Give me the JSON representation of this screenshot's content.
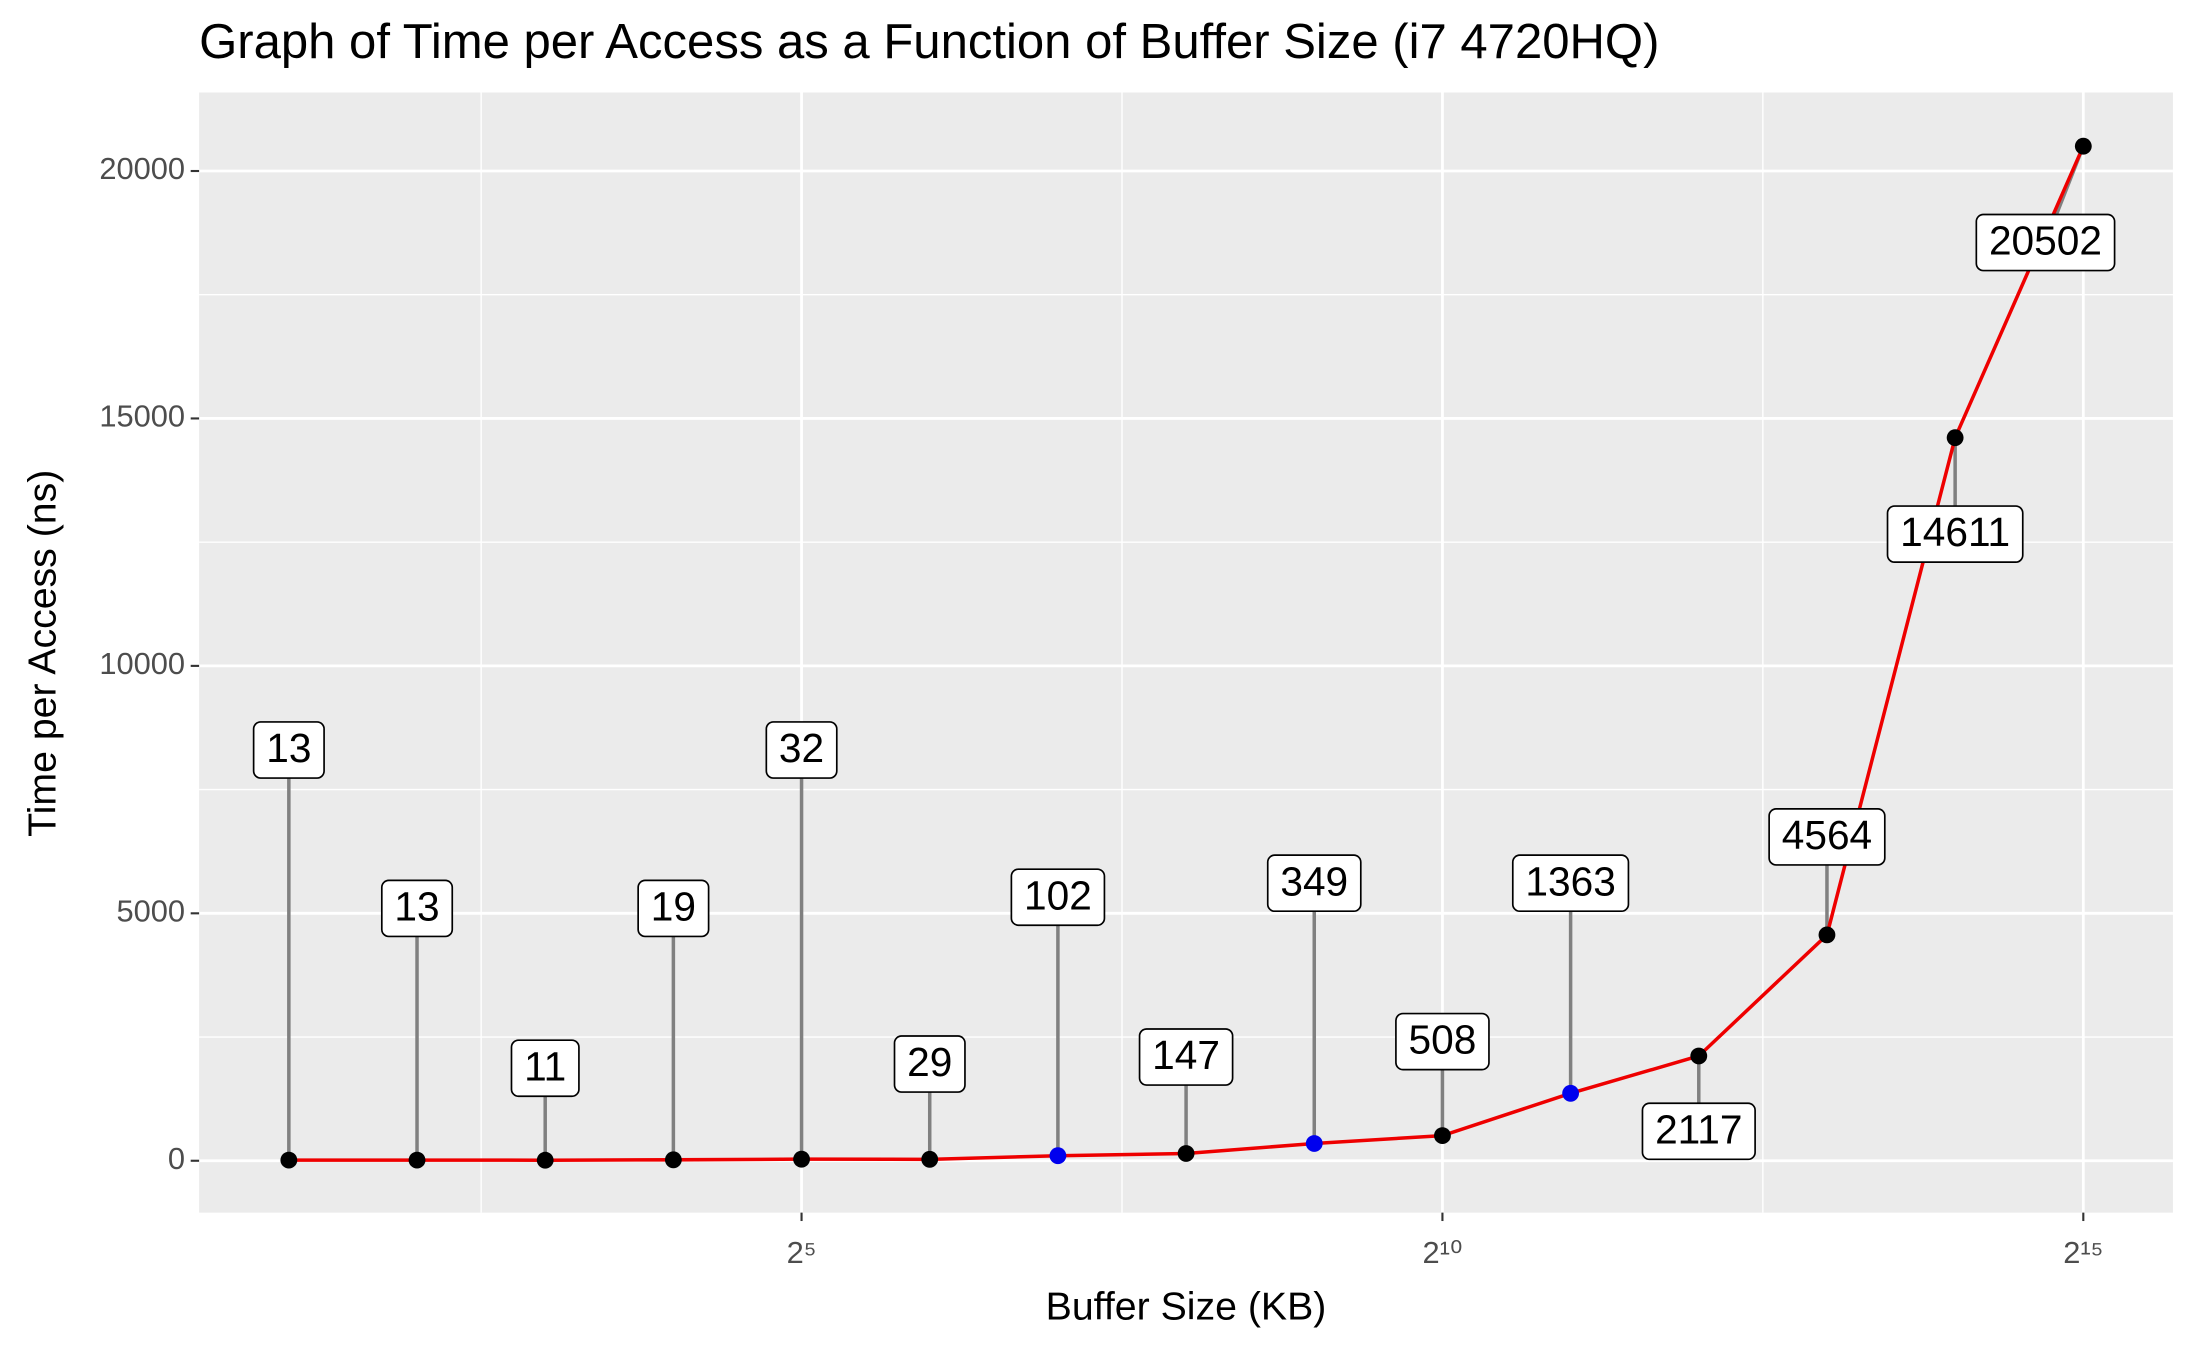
{
  "chart_data": {
    "type": "line",
    "title": "Graph of Time per Access as a Function of Buffer Size (i7 4720HQ)",
    "x_label": "Buffer Size (KB)",
    "y_label": "Time per Access (ns)",
    "x": [
      2,
      4,
      8,
      16,
      32,
      64,
      128,
      256,
      512,
      1024,
      2048,
      4096,
      8192,
      16384,
      32768
    ],
    "values": [
      13,
      13,
      11,
      19,
      32,
      29,
      102,
      147,
      349,
      508,
      1363,
      2117,
      4564,
      14611,
      20502
    ],
    "color": "#ee0000",
    "point_colors": [
      "#000000",
      "#000000",
      "#000000",
      "#000000",
      "#000000",
      "#000000",
      "#0000ee",
      "#000000",
      "#0000ee",
      "#000000",
      "#0000ee",
      "#000000",
      "#000000",
      "#000000",
      "#000000"
    ],
    "x_log_base": 2,
    "xlim": [
      1.231,
      53204
    ],
    "xticks": [
      {
        "value": 32,
        "label": "2⁵"
      },
      {
        "value": 1024,
        "label": "2¹⁰"
      },
      {
        "value": 32768,
        "label": "2¹⁵"
      }
    ],
    "ylim": [
      -1048,
      21586
    ],
    "yticks": [
      0,
      5000,
      10000,
      15000,
      20000
    ],
    "grid": true
  }
}
